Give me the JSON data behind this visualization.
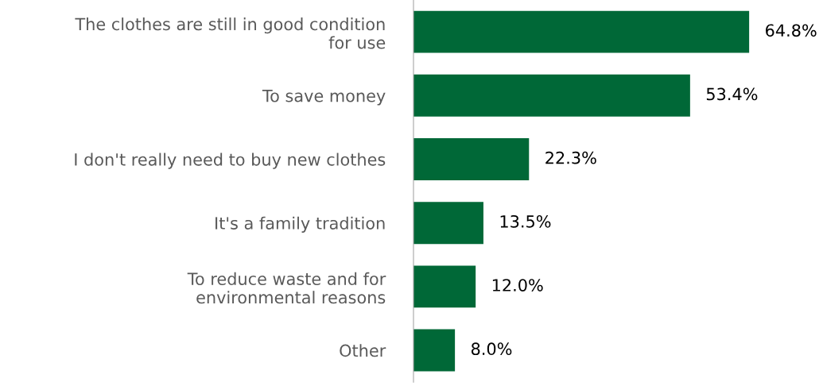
{
  "chart_data": {
    "type": "bar",
    "orientation": "horizontal",
    "categories": [
      "The clothes are still in good condition\nfor use",
      "To save money",
      "I don't really need to buy new clothes",
      "It's a family tradition",
      "To reduce waste and for\nenvironmental reasons",
      "Other"
    ],
    "values": [
      64.8,
      53.4,
      22.3,
      13.5,
      12.0,
      8.0
    ],
    "value_labels": [
      "64.8%",
      "53.4%",
      "22.3%",
      "13.5%",
      "12.0%",
      "8.0%"
    ],
    "color": "#006837",
    "tick_labels": "y",
    "grid": false,
    "legend": false
  }
}
